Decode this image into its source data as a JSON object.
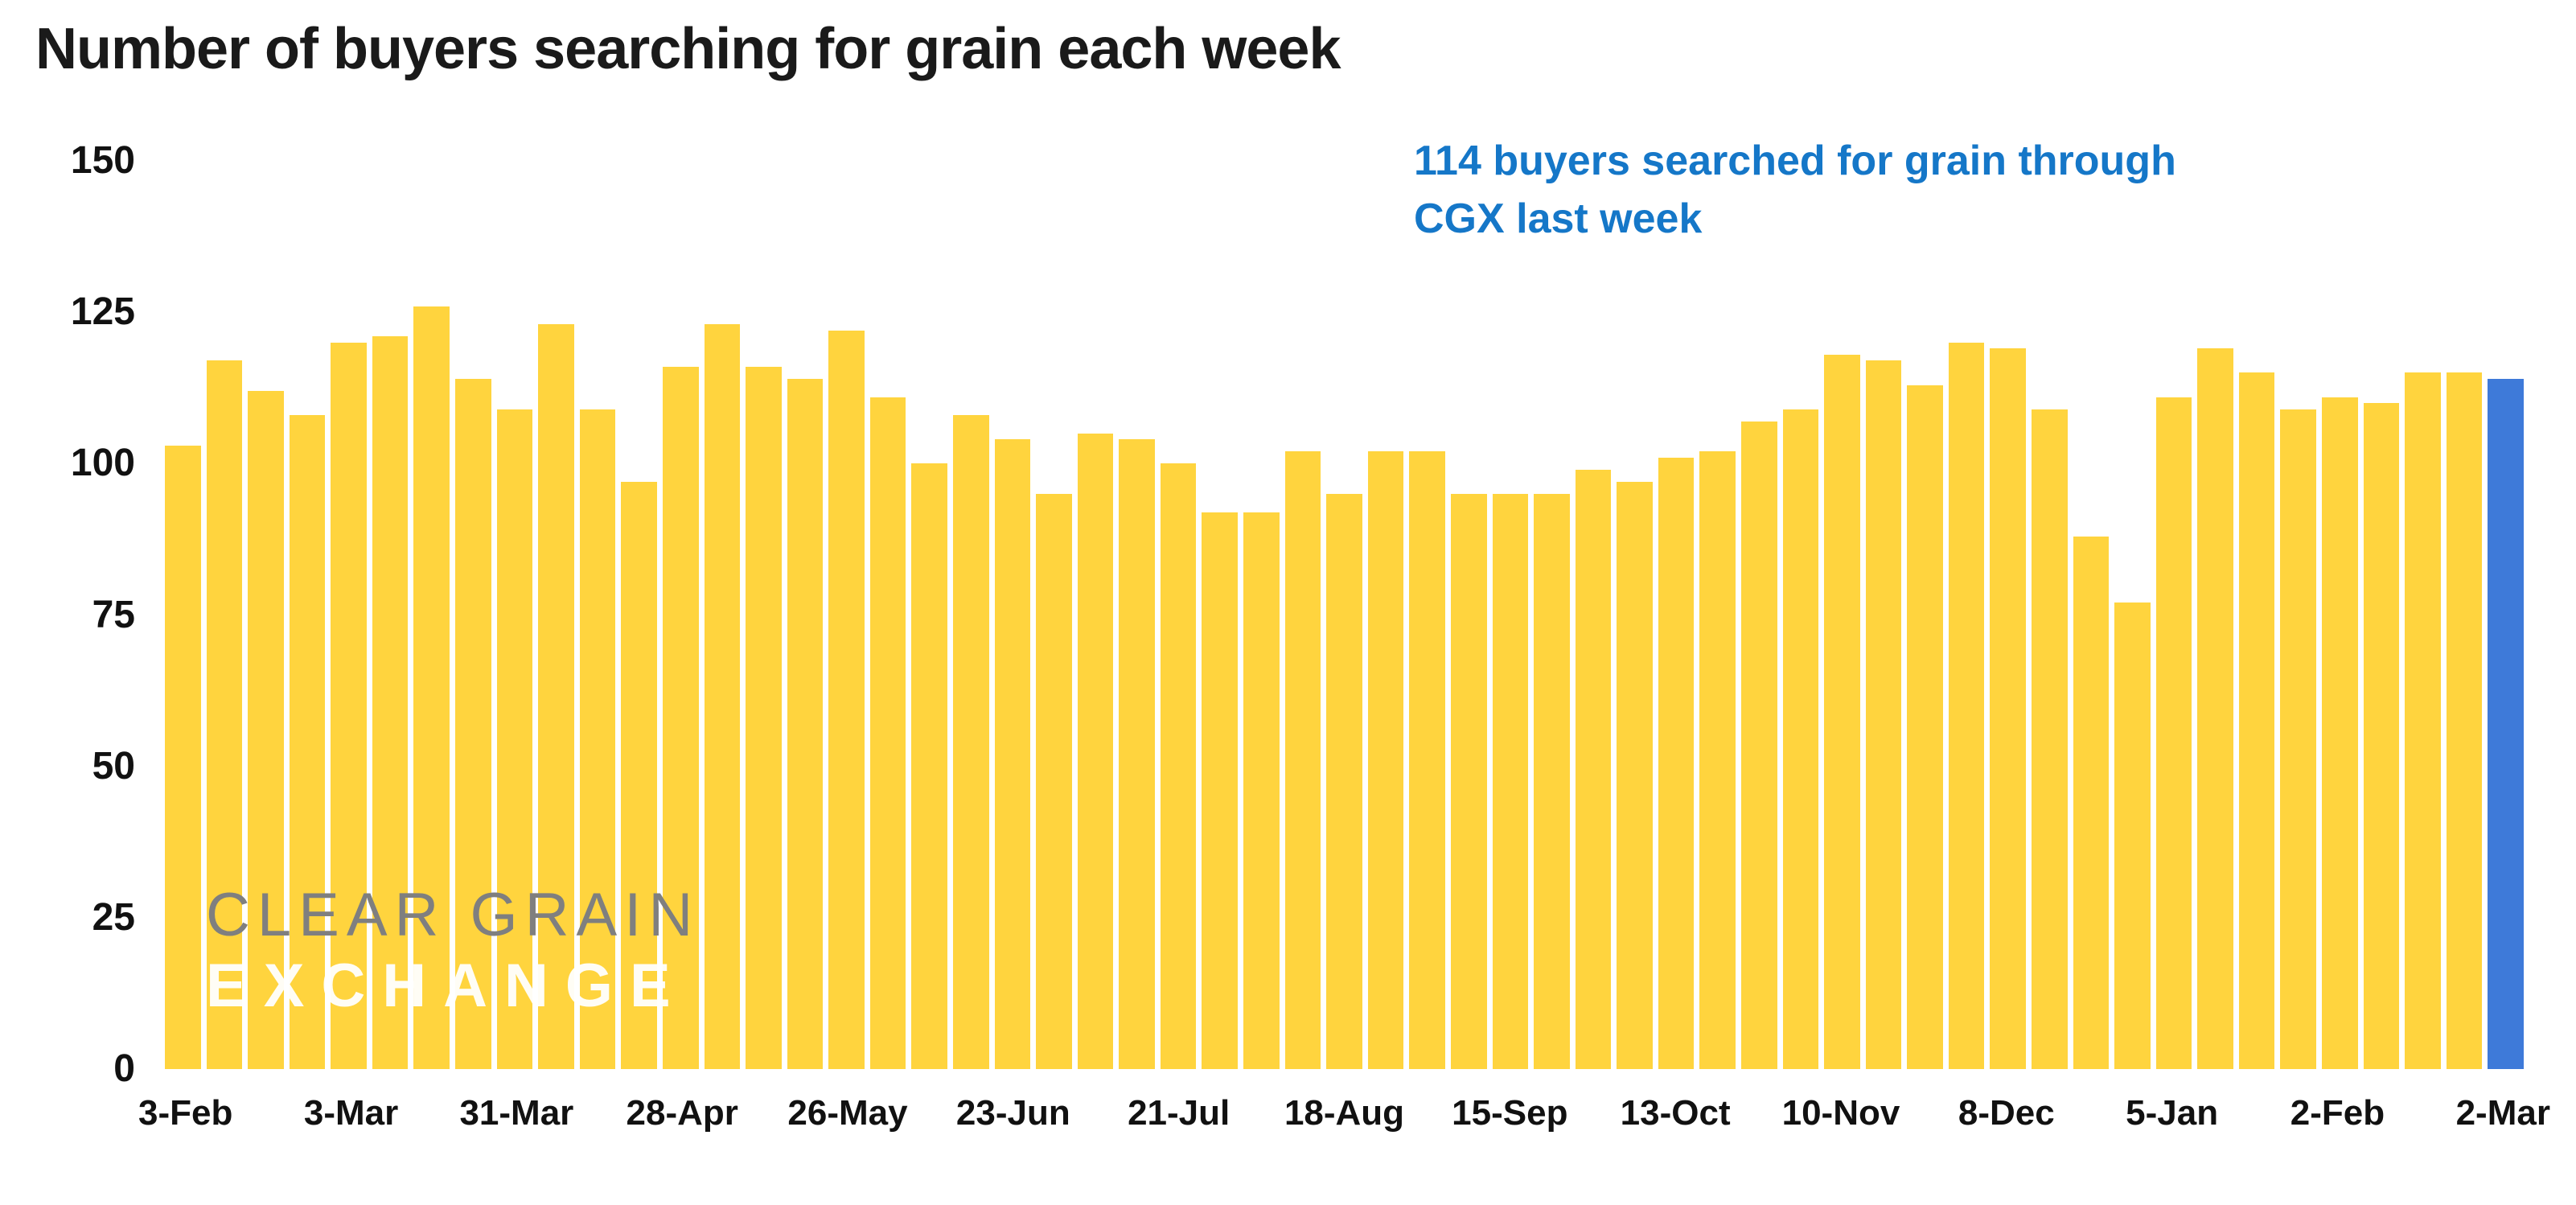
{
  "page": {
    "title": "Number of buyers searching for grain each week"
  },
  "annotation": {
    "lines": [
      "114 buyers searched for grain through",
      "CGX last week"
    ]
  },
  "watermark": {
    "line1": "CLEAR GRAIN",
    "line2": "EXCHANGE"
  },
  "colors": {
    "bar": "#FFD43E",
    "highlight_bar": "#3E7AD9",
    "annotation_text": "#1577C8",
    "title_text": "#1A1A1A",
    "axis_text": "#111111",
    "watermark_gray": "#7F7F7F",
    "watermark_white": "rgba(255,255,255,0.95)"
  },
  "chart_data": {
    "type": "bar",
    "title": "Number of buyers searching for grain each week",
    "xlabel": "",
    "ylabel": "",
    "ylim": [
      0,
      150
    ],
    "y_ticks": [
      0,
      25,
      50,
      75,
      100,
      125,
      150
    ],
    "grid": false,
    "legend": false,
    "x_tick_labels": [
      "3-Feb",
      "3-Mar",
      "31-Mar",
      "28-Apr",
      "26-May",
      "23-Jun",
      "21-Jul",
      "18-Aug",
      "15-Sep",
      "13-Oct",
      "10-Nov",
      "8-Dec",
      "5-Jan",
      "2-Feb",
      "2-Mar"
    ],
    "tick_every": 4,
    "values": [
      103,
      117,
      112,
      108,
      120,
      121,
      126,
      114,
      109,
      123,
      109,
      97,
      116,
      123,
      116,
      114,
      122,
      111,
      100,
      108,
      104,
      95,
      105,
      104,
      100,
      92,
      92,
      102,
      95,
      102,
      102,
      95,
      95,
      95,
      99,
      97,
      101,
      102,
      107,
      109,
      118,
      117,
      113,
      120,
      119,
      109,
      88,
      77,
      111,
      119,
      115,
      109,
      111,
      110,
      115,
      115,
      114
    ],
    "highlight_last_bar": true,
    "annotation": "114 buyers searched for grain through CGX last week"
  }
}
